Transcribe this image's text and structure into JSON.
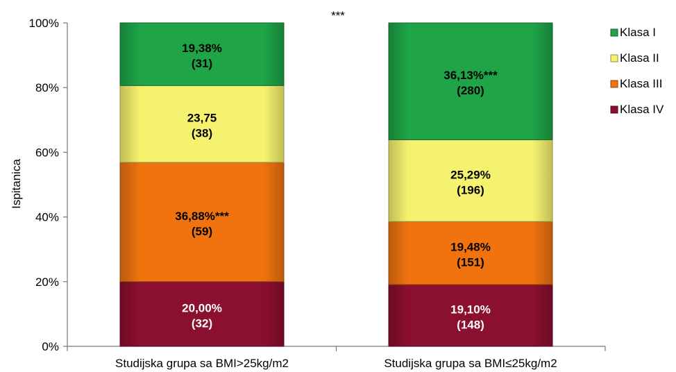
{
  "chart_data": {
    "type": "bar",
    "stacked": true,
    "ylabel": "Ispitanica",
    "ylim": [
      0,
      100
    ],
    "yticks": [
      "0%",
      "20%",
      "40%",
      "60%",
      "80%",
      "100%"
    ],
    "categories": [
      "Studijska grupa sa BMI>25kg/m2",
      "Studijska grupa sa BMI≤25kg/m2"
    ],
    "annotation": "***",
    "legend_position": "right",
    "series": [
      {
        "name": "Klasa IV",
        "color": "#8b0f2e",
        "label_color": "#ffffff",
        "values": [
          20.0,
          19.1
        ],
        "labels": [
          {
            "line1": "20,00%",
            "line2": "(32)"
          },
          {
            "line1": "19,10%",
            "line2": "(148)"
          }
        ]
      },
      {
        "name": "Klasa III",
        "color": "#f0730f",
        "label_color": "#000000",
        "values": [
          36.88,
          19.48
        ],
        "labels": [
          {
            "line1": "36,88%***",
            "line2": "(59)"
          },
          {
            "line1": "19,48%",
            "line2": "(151)"
          }
        ]
      },
      {
        "name": "Klasa II",
        "color": "#f5f270",
        "label_color": "#000000",
        "values": [
          23.75,
          25.29
        ],
        "labels": [
          {
            "line1": "23,75",
            "line2": "(38)"
          },
          {
            "line1": "25,29%",
            "line2": "(196)"
          }
        ]
      },
      {
        "name": "Klasa I",
        "color": "#1fa448",
        "label_color": "#000000",
        "values": [
          19.38,
          36.13
        ],
        "labels": [
          {
            "line1": "19,38%",
            "line2": "(31)"
          },
          {
            "line1": "36,13%***",
            "line2": "(280)"
          }
        ]
      }
    ],
    "legend_order": [
      "Klasa I",
      "Klasa II",
      "Klasa III",
      "Klasa IV"
    ]
  }
}
